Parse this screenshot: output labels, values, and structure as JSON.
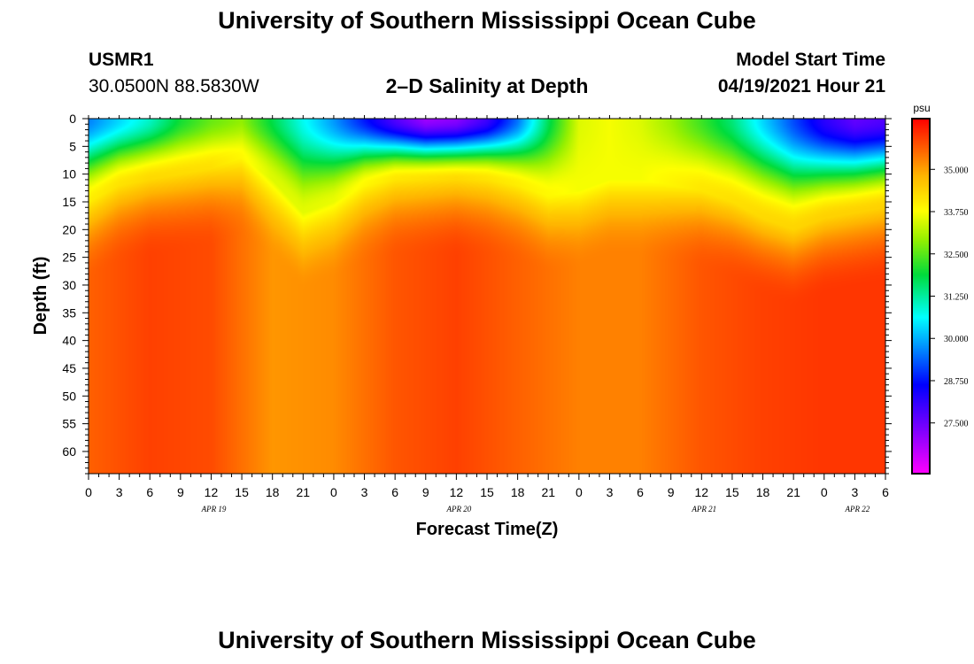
{
  "header": {
    "title": "University of Southern Mississippi Ocean Cube",
    "station": "USMR1",
    "coords": "30.0500N  88.5830W",
    "plot_title": "2–D Salinity at Depth",
    "model_start_label": "Model Start Time",
    "model_start_value": "04/19/2021 Hour 21"
  },
  "footer": {
    "title": "University of Southern Mississippi Ocean Cube"
  },
  "chart_data": {
    "type": "heatmap",
    "title": "2–D Salinity at Depth",
    "xlabel": "Forecast Time(Z)",
    "ylabel": "Depth (ft)",
    "x_tick_labels": [
      "0",
      "3",
      "6",
      "9",
      "12",
      "15",
      "18",
      "21",
      "0",
      "3",
      "6",
      "9",
      "12",
      "15",
      "18",
      "21",
      "0",
      "3",
      "6",
      "9",
      "12",
      "15",
      "18",
      "21",
      "0",
      "3",
      "6"
    ],
    "x_range_hours": [
      0,
      78
    ],
    "date_labels": [
      {
        "label": "APR 19",
        "hour": 12
      },
      {
        "label": "APR 20",
        "hour": 36
      },
      {
        "label": "APR 21",
        "hour": 60
      },
      {
        "label": "APR 22",
        "hour": 75
      }
    ],
    "y_ticks": [
      0,
      5,
      10,
      15,
      20,
      25,
      30,
      35,
      40,
      45,
      50,
      55,
      60
    ],
    "y_range": [
      0,
      64
    ],
    "colorbar": {
      "unit": "psu",
      "range": [
        26.0,
        36.5
      ],
      "ticks": [
        "35.000",
        "33.750",
        "32.500",
        "31.250",
        "30.000",
        "28.750",
        "27.500"
      ],
      "tick_values": [
        35.0,
        33.75,
        32.5,
        31.25,
        30.0,
        28.75,
        27.5
      ]
    },
    "surface_salinity_by_hour": [
      [
        0,
        29.6
      ],
      [
        3,
        30.3
      ],
      [
        6,
        31.0
      ],
      [
        9,
        32.0
      ],
      [
        12,
        32.6
      ],
      [
        15,
        32.9
      ],
      [
        18,
        31.8
      ],
      [
        21,
        30.7
      ],
      [
        24,
        29.8
      ],
      [
        27,
        28.8
      ],
      [
        30,
        27.8
      ],
      [
        33,
        27.0
      ],
      [
        36,
        27.2
      ],
      [
        39,
        28.0
      ],
      [
        42,
        29.5
      ],
      [
        45,
        31.7
      ],
      [
        48,
        33.5
      ],
      [
        51,
        33.7
      ],
      [
        54,
        33.5
      ],
      [
        57,
        33.0
      ],
      [
        60,
        32.3
      ],
      [
        63,
        31.5
      ],
      [
        66,
        30.3
      ],
      [
        69,
        29.2
      ],
      [
        72,
        28.2
      ],
      [
        75,
        27.6
      ],
      [
        78,
        27.8
      ]
    ],
    "halocline_depth_ft_by_hour": [
      [
        0,
        15
      ],
      [
        3,
        12
      ],
      [
        6,
        11
      ],
      [
        9,
        10
      ],
      [
        12,
        9
      ],
      [
        15,
        7
      ],
      [
        18,
        11
      ],
      [
        21,
        17
      ],
      [
        24,
        15
      ],
      [
        27,
        12
      ],
      [
        30,
        11
      ],
      [
        33,
        11
      ],
      [
        36,
        11
      ],
      [
        39,
        11
      ],
      [
        42,
        12
      ],
      [
        45,
        14
      ],
      [
        48,
        13
      ],
      [
        51,
        11
      ],
      [
        54,
        11
      ],
      [
        57,
        12
      ],
      [
        60,
        13
      ],
      [
        63,
        15
      ],
      [
        66,
        18
      ],
      [
        69,
        20
      ],
      [
        72,
        18
      ],
      [
        75,
        17
      ],
      [
        78,
        16
      ]
    ],
    "deep_salinity_by_hour": [
      [
        0,
        35.6
      ],
      [
        6,
        35.9
      ],
      [
        12,
        35.8
      ],
      [
        18,
        35.1
      ],
      [
        24,
        35.2
      ],
      [
        30,
        35.7
      ],
      [
        36,
        35.9
      ],
      [
        42,
        35.6
      ],
      [
        48,
        35.3
      ],
      [
        54,
        35.3
      ],
      [
        60,
        35.7
      ],
      [
        66,
        35.9
      ],
      [
        72,
        36.0
      ],
      [
        78,
        36.0
      ]
    ]
  }
}
